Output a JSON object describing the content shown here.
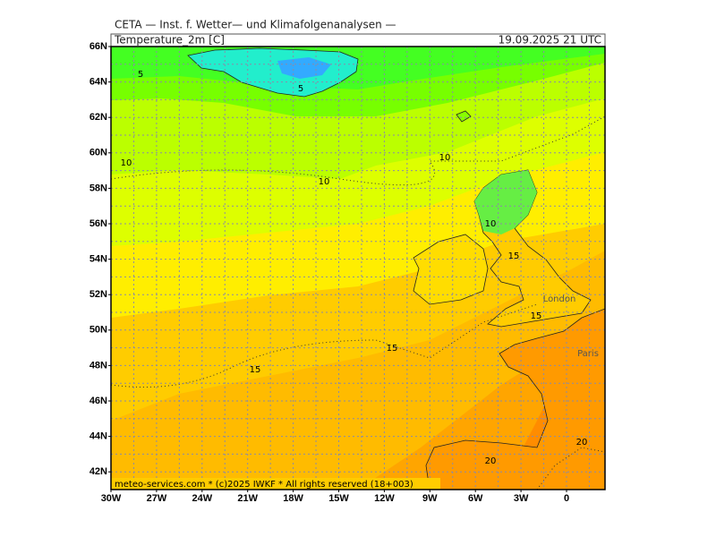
{
  "header": {
    "institute": "CETA — Inst. f. Wetter— und Klimafolgenanalysen —",
    "variable": "Temperature_2m [C]",
    "valid_time": "19.09.2025 21 UTC"
  },
  "map": {
    "lat_labels": [
      "66N",
      "64N",
      "62N",
      "60N",
      "58N",
      "56N",
      "54N",
      "52N",
      "50N",
      "48N",
      "46N",
      "44N",
      "42N"
    ],
    "lon_labels": [
      "30W",
      "27W",
      "24W",
      "21W",
      "18W",
      "15W",
      "12W",
      "9W",
      "6W",
      "3W",
      "0"
    ],
    "contour_labels": [
      "5",
      "5",
      "10",
      "10",
      "10",
      "10",
      "15",
      "15",
      "15",
      "15",
      "20",
      "20"
    ],
    "place_labels": [
      "London",
      "Paris"
    ]
  },
  "footer": "meteo-services.com * (c)2025 IWKF * All rights reserved (18+003)"
}
